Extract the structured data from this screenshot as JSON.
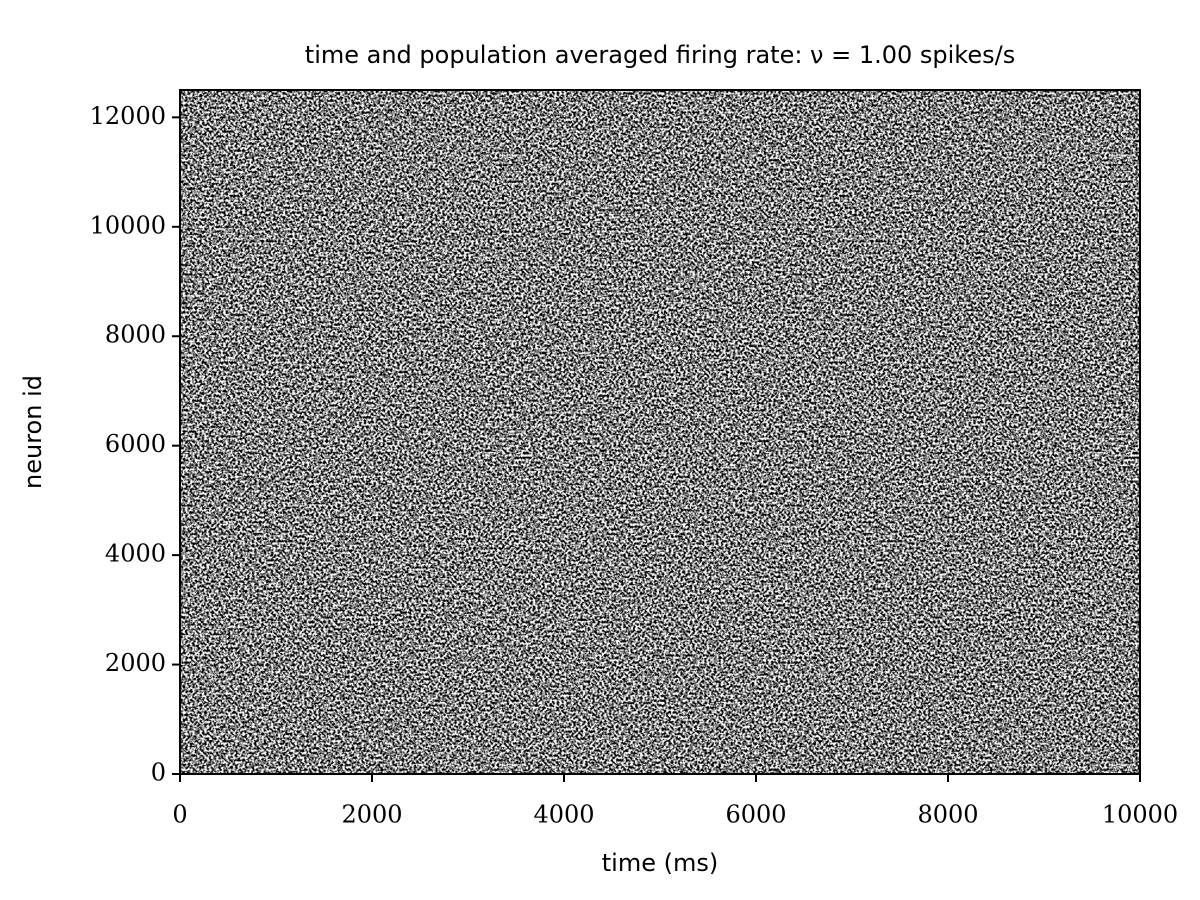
{
  "chart_data": {
    "type": "raster",
    "title": "time and population averaged firing rate: ν = 1.00 spikes/s",
    "x_label": "time (ms)",
    "y_label": "neuron id",
    "xlim": [
      0,
      10000
    ],
    "ylim": [
      0,
      12500
    ],
    "xticks": [
      0,
      2000,
      4000,
      6000,
      8000,
      10000
    ],
    "yticks": [
      0,
      2000,
      4000,
      6000,
      8000,
      10000,
      12000
    ],
    "color": "#000000"
  }
}
